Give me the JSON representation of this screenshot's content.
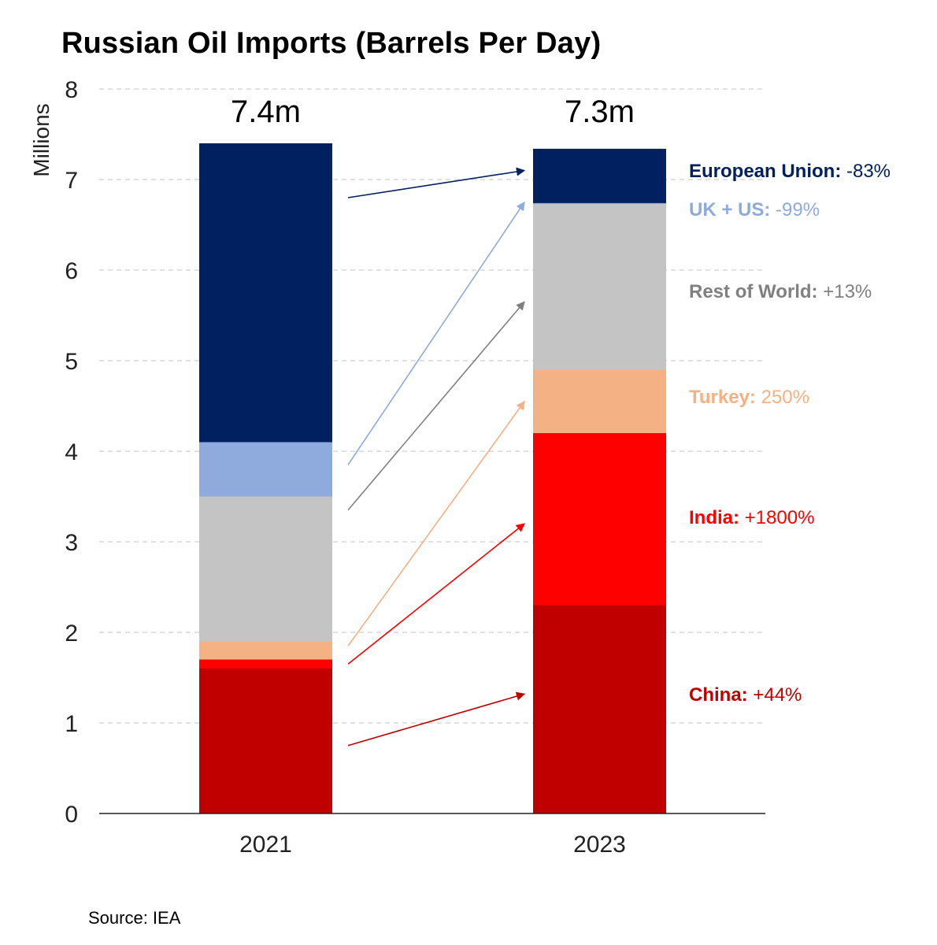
{
  "title": "Russian Oil Imports (Barrels Per Day)",
  "source": "Source: IEA",
  "chart_data": {
    "type": "bar",
    "stacked": true,
    "categories": [
      "2021",
      "2023"
    ],
    "ylabel": "Millions",
    "ylim": [
      0,
      8
    ],
    "yticks": [
      "0",
      "1",
      "2",
      "3",
      "4",
      "5",
      "6",
      "7",
      "8"
    ],
    "grid": true,
    "totals": [
      "7.4m",
      "7.3m"
    ],
    "series": [
      {
        "name": "China",
        "values": [
          1.6,
          2.3
        ],
        "color": "#C00000"
      },
      {
        "name": "India",
        "values": [
          0.1,
          1.9
        ],
        "color": "#FF0000"
      },
      {
        "name": "Turkey",
        "values": [
          0.2,
          0.7
        ],
        "color": "#F4B183"
      },
      {
        "name": "Rest of World",
        "values": [
          1.6,
          1.83
        ],
        "color": "#C4C4C4"
      },
      {
        "name": "UK + US",
        "values": [
          0.6,
          0.01
        ],
        "color": "#8FAADC"
      },
      {
        "name": "European Union",
        "values": [
          3.3,
          0.6
        ],
        "color": "#002060"
      }
    ],
    "annotations": [
      {
        "series": "European Union",
        "name": "European Union",
        "change": "-83%",
        "name_color": "#002060",
        "change_color": "#002060"
      },
      {
        "series": "UK + US",
        "name": "UK + US",
        "change": "-99%",
        "name_color": "#8FAADC",
        "change_color": "#8FAADC"
      },
      {
        "series": "Rest of World",
        "name": "Rest of World",
        "change": "+13%",
        "name_color": "#808080",
        "change_color": "#808080"
      },
      {
        "series": "Turkey",
        "name": "Turkey",
        "change": "250%",
        "name_color": "#F4B183",
        "change_color": "#F4B183"
      },
      {
        "series": "India",
        "name": "India",
        "change": "+1800%",
        "name_color": "#FF0000",
        "change_color": "#FF0000"
      },
      {
        "series": "China",
        "name": "China",
        "change": "+44%",
        "name_color": "#C00000",
        "change_color": "#C00000"
      }
    ],
    "arrows": [
      {
        "series": "European Union",
        "color": "#002060",
        "from": 6.8,
        "to": 7.1
      },
      {
        "series": "UK + US",
        "color": "#8FAADC",
        "from": 3.85,
        "to": 6.75
      },
      {
        "series": "Rest of World",
        "color": "#808080",
        "from": 3.35,
        "to": 5.65
      },
      {
        "series": "Turkey",
        "color": "#F4B183",
        "from": 1.85,
        "to": 4.55
      },
      {
        "series": "India",
        "color": "#FF0000",
        "from": 1.65,
        "to": 3.2
      },
      {
        "series": "China",
        "color": "#C00000",
        "from": 0.75,
        "to": 1.32
      }
    ]
  }
}
